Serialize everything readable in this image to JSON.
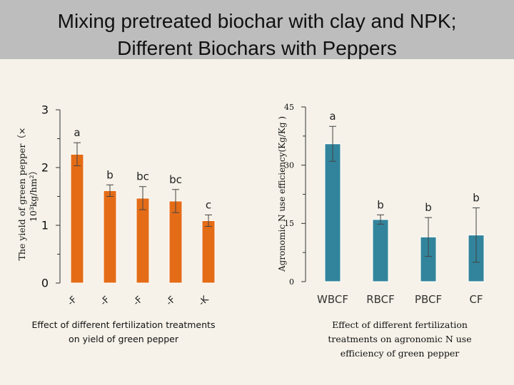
{
  "title": {
    "line1": "Mixing pretreated biochar with  clay and NPK;",
    "line2": "Different Biochars with Peppers"
  },
  "colors": {
    "left_bars": "#e46c17",
    "right_bars": "#31849b",
    "bar_edge": "#ffffff"
  },
  "chart_data": [
    {
      "type": "bar",
      "name": "yield",
      "title": "",
      "ylabel": "The yield of green pepper（× 10³kg/hm²）",
      "ylabel_line1": "The yield of green pepper（×",
      "ylabel_line2": "10³kg/hm²）",
      "ylim": [
        0,
        3
      ],
      "yticks": [
        0,
        1,
        2,
        3
      ],
      "categories": [
        "-F",
        "-F",
        "-F",
        "-F",
        "-K"
      ],
      "values": [
        2.23,
        1.6,
        1.47,
        1.42,
        1.08
      ],
      "errors": [
        0.2,
        0.1,
        0.2,
        0.2,
        0.1
      ],
      "letters": [
        "a",
        "b",
        "bc",
        "bc",
        "c"
      ],
      "caption_line1": "Effect of different fertilization treatments",
      "caption_line2": "on yield of green pepper"
    },
    {
      "type": "bar",
      "name": "anue",
      "title": "",
      "ylabel": "Agronomic N use efficiency(Kg/Kg )",
      "ylim": [
        0,
        45
      ],
      "yticks": [
        0,
        15,
        30,
        45
      ],
      "categories": [
        "WBCF",
        "RBCF",
        "PBCF",
        "CF"
      ],
      "values": [
        35.5,
        16,
        11.5,
        12
      ],
      "errors": [
        4.5,
        1.2,
        5,
        7
      ],
      "letters": [
        "a",
        "b",
        "b",
        "b"
      ],
      "caption_line1": "Effect of different fertilization",
      "caption_line2": "treatments on agronomic N use",
      "caption_line3": "efficiency of green pepper"
    }
  ]
}
